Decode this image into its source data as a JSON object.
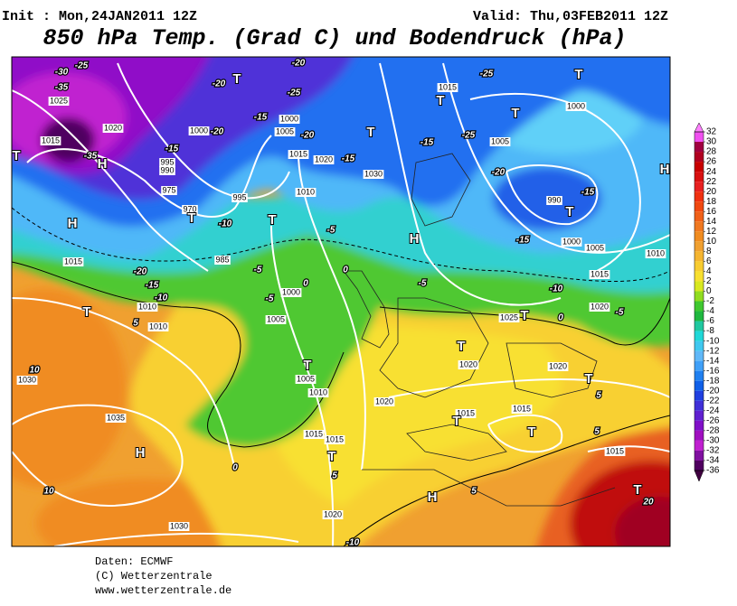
{
  "header": {
    "init": "Init : Mon,24JAN2011 12Z",
    "valid": "Valid: Thu,03FEB2011 12Z",
    "title": "850 hPa Temp. (Grad C) und Bodendruck (hPa)"
  },
  "colorbar": {
    "ticks": [
      32,
      30,
      28,
      26,
      24,
      22,
      20,
      18,
      16,
      14,
      12,
      10,
      8,
      6,
      4,
      2,
      0,
      -2,
      -4,
      -6,
      -8,
      -10,
      -12,
      -14,
      -16,
      -18,
      -20,
      -22,
      -24,
      -26,
      -28,
      -30,
      -32,
      -34,
      -36
    ],
    "colors": [
      "#f050f0",
      "#a00040",
      "#b00020",
      "#c80000",
      "#d81010",
      "#e82020",
      "#f03010",
      "#f04810",
      "#f06018",
      "#f07820",
      "#f08c20",
      "#f0a030",
      "#f5b530",
      "#f8cc30",
      "#f8e030",
      "#d8e820",
      "#90dc20",
      "#40c830",
      "#20b840",
      "#20c8a0",
      "#20d8d8",
      "#40c8f0",
      "#60b8f8",
      "#40a0f8",
      "#2080f0",
      "#1060e8",
      "#2040e0",
      "#4030d8",
      "#6020d0",
      "#8010c8",
      "#a010c0",
      "#c020d0",
      "#8010a0",
      "#500060"
    ]
  },
  "map": {
    "labels": [
      "-25",
      "-30",
      "-35",
      "1025",
      "1020",
      "1015",
      "-35",
      "H",
      "T",
      "H",
      "1015",
      "-20",
      "-15",
      "-10",
      "1010",
      "T",
      "5",
      "1010",
      "10",
      "1030",
      "1035",
      "H",
      "10",
      "1030",
      "0",
      "-10",
      "-20",
      "T",
      "-20",
      "-25",
      "-15",
      "1000",
      "1000",
      "-20",
      "1005",
      "-20",
      "-15",
      "995",
      "990",
      "975",
      "970",
      "T",
      "-10",
      "995",
      "T",
      "1010",
      "1015",
      "1020",
      "-15",
      "-5",
      "985",
      "-5",
      "-5",
      "1000",
      "0",
      "1005",
      "1030",
      "0",
      "T",
      "1005",
      "1010",
      "1015",
      "1015",
      "T",
      "5",
      "1020",
      "T",
      "1015",
      "-25",
      "T",
      "T",
      "T",
      "1000",
      "-25",
      "-15",
      "1005",
      "-20",
      "990",
      "-15",
      "T",
      "-15",
      "1000",
      "1005",
      "1010",
      "H",
      "H",
      "1015",
      "-5",
      "-10",
      "1020",
      "-5",
      "1025",
      "T",
      "0",
      "T",
      "1020",
      "1020",
      "T",
      "5",
      "1015",
      "T",
      "1015",
      "T",
      "1020",
      "5",
      "1015",
      "T",
      "20",
      "H",
      "5"
    ]
  },
  "footer": {
    "source": "Daten: ECMWF",
    "copyright": "(C) Wetterzentrale",
    "url": "www.wetterzentrale.de"
  }
}
